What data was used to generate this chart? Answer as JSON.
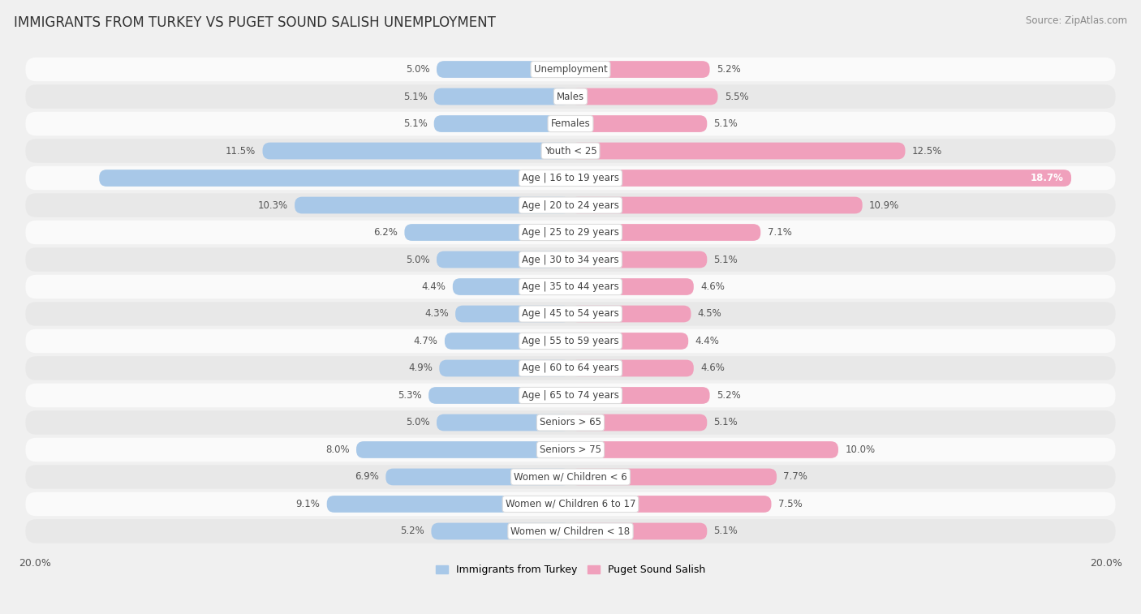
{
  "title": "IMMIGRANTS FROM TURKEY VS PUGET SOUND SALISH UNEMPLOYMENT",
  "source": "Source: ZipAtlas.com",
  "categories": [
    "Unemployment",
    "Males",
    "Females",
    "Youth < 25",
    "Age | 16 to 19 years",
    "Age | 20 to 24 years",
    "Age | 25 to 29 years",
    "Age | 30 to 34 years",
    "Age | 35 to 44 years",
    "Age | 45 to 54 years",
    "Age | 55 to 59 years",
    "Age | 60 to 64 years",
    "Age | 65 to 74 years",
    "Seniors > 65",
    "Seniors > 75",
    "Women w/ Children < 6",
    "Women w/ Children 6 to 17",
    "Women w/ Children < 18"
  ],
  "left_values": [
    5.0,
    5.1,
    5.1,
    11.5,
    17.6,
    10.3,
    6.2,
    5.0,
    4.4,
    4.3,
    4.7,
    4.9,
    5.3,
    5.0,
    8.0,
    6.9,
    9.1,
    5.2
  ],
  "right_values": [
    5.2,
    5.5,
    5.1,
    12.5,
    18.7,
    10.9,
    7.1,
    5.1,
    4.6,
    4.5,
    4.4,
    4.6,
    5.2,
    5.1,
    10.0,
    7.7,
    7.5,
    5.1
  ],
  "left_color": "#a8c8e8",
  "right_color": "#f0a0bc",
  "bar_height": 0.62,
  "x_max": 20.0,
  "background_color": "#f0f0f0",
  "row_bg_light": "#fafafa",
  "row_bg_dark": "#e8e8e8",
  "legend_left_label": "Immigrants from Turkey",
  "legend_right_label": "Puget Sound Salish",
  "title_fontsize": 12,
  "source_fontsize": 8.5,
  "bar_label_fontsize": 8.5,
  "category_fontsize": 8.5,
  "axis_label_fontsize": 9,
  "inside_label_threshold": 15.0
}
